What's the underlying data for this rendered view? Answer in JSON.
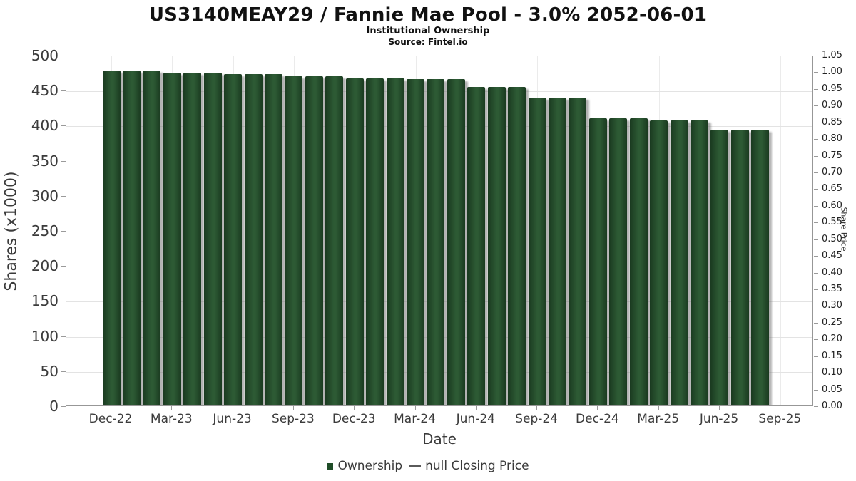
{
  "header": {
    "title": "US3140MEAY29 / Fannie Mae Pool - 3.0% 2052-06-01",
    "subtitle": "Institutional Ownership",
    "source": "Source: Fintel.io"
  },
  "chart_data": {
    "type": "bar",
    "title": "US3140MEAY29 / Fannie Mae Pool - 3.0% 2052-06-01",
    "subtitle": "Institutional Ownership",
    "source": "Source: Fintel.io",
    "xlabel": "Date",
    "ylabel_left": "Shares (x1000)",
    "ylabel_right": "Share Price",
    "ylim_left": [
      0,
      500
    ],
    "ylim_right": [
      0.0,
      1.05
    ],
    "grid": true,
    "legend_position": "bottom",
    "y_ticks_left": [
      0,
      50,
      100,
      150,
      200,
      250,
      300,
      350,
      400,
      450,
      500
    ],
    "y_ticks_right": [
      "0.00",
      "0.05",
      "0.10",
      "0.15",
      "0.20",
      "0.25",
      "0.30",
      "0.35",
      "0.40",
      "0.45",
      "0.50",
      "0.55",
      "0.60",
      "0.65",
      "0.70",
      "0.75",
      "0.80",
      "0.85",
      "0.90",
      "0.95",
      "1.00",
      "1.05"
    ],
    "x_tick_labels": [
      "Dec-22",
      "Mar-23",
      "Jun-23",
      "Sep-23",
      "Dec-23",
      "Mar-24",
      "Jun-24",
      "Sep-24",
      "Dec-24",
      "Mar-25",
      "Jun-25",
      "Sep-25"
    ],
    "categories": [
      "Dec-22",
      "Jan-23",
      "Feb-23",
      "Mar-23",
      "Apr-23",
      "May-23",
      "Jun-23",
      "Jul-23",
      "Aug-23",
      "Sep-23",
      "Oct-23",
      "Nov-23",
      "Dec-23",
      "Jan-24",
      "Feb-24",
      "Mar-24",
      "Apr-24",
      "May-24",
      "Jun-24",
      "Jul-24",
      "Aug-24",
      "Sep-24",
      "Oct-24",
      "Nov-24",
      "Dec-24",
      "Jan-25",
      "Feb-25",
      "Mar-25",
      "Apr-25",
      "May-25",
      "Jun-25",
      "Jul-25",
      "Aug-25"
    ],
    "series": [
      {
        "name": "Ownership",
        "marker": "square",
        "color": "#1f4d28",
        "values": [
          480,
          480,
          480,
          477,
          477,
          477,
          475,
          475,
          475,
          472,
          472,
          472,
          469,
          469,
          469,
          467,
          467,
          467,
          456,
          456,
          456,
          441,
          441,
          441,
          412,
          412,
          412,
          409,
          409,
          409,
          395,
          395,
          395
        ]
      },
      {
        "name": "null Closing Price",
        "marker": "line",
        "color": "#5a5a5a",
        "values": []
      }
    ],
    "bar_color": "#2d5a34",
    "bar_edge_color": "#1a3a20"
  }
}
